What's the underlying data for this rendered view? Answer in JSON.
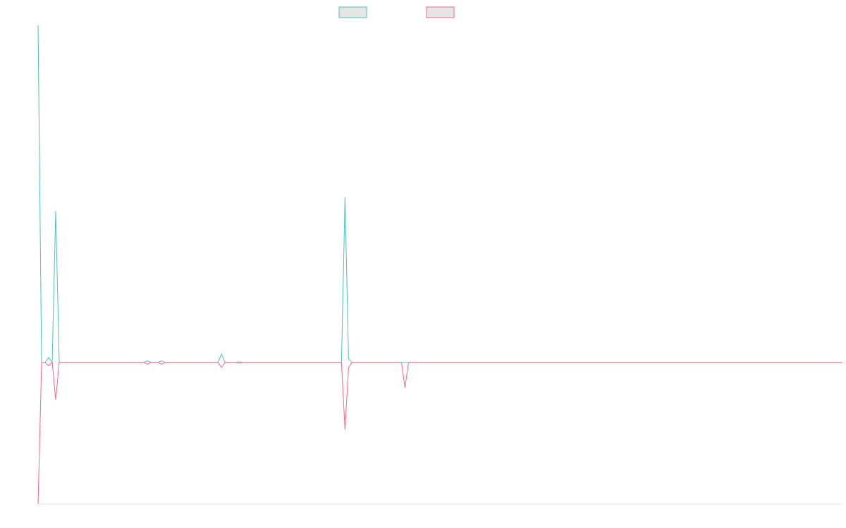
{
  "chart_data": {
    "type": "line",
    "x": [
      0,
      1,
      2,
      3,
      4,
      5,
      6,
      30,
      31,
      32,
      34,
      35,
      36,
      51,
      52,
      53,
      56,
      57,
      58,
      86,
      87,
      88,
      89,
      103,
      104,
      105,
      228
    ],
    "xlim": [
      0,
      228
    ],
    "ylim": [
      -42,
      100
    ],
    "series": [
      {
        "color": "#4bc0c0",
        "values": [
          100,
          0,
          0,
          1.5,
          0,
          45,
          0,
          0,
          0.5,
          0,
          0,
          0.5,
          0,
          0,
          2.5,
          0,
          0,
          0.2,
          0,
          0,
          49,
          1,
          0,
          0,
          0,
          0,
          0
        ]
      },
      {
        "color": "#ff6384",
        "values": [
          -42,
          0,
          0,
          -1,
          0,
          -11,
          0,
          0,
          -0.5,
          0,
          0,
          -0.5,
          0,
          0,
          -1.5,
          0,
          0,
          -0.2,
          0,
          0,
          -20,
          -1.5,
          0,
          0,
          -7.5,
          0,
          0
        ]
      }
    ]
  }
}
